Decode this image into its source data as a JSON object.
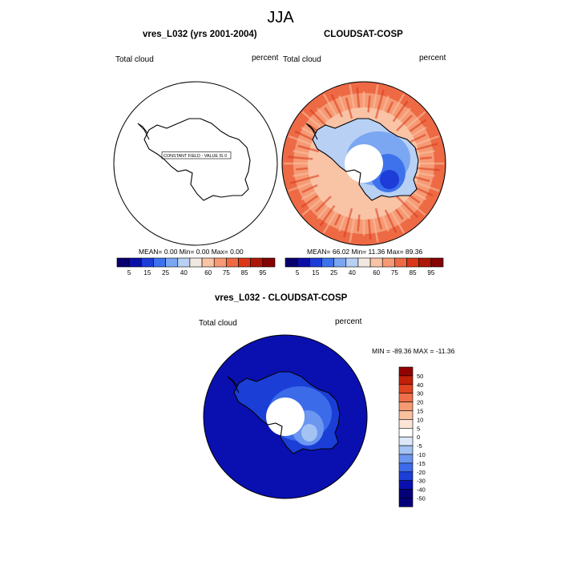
{
  "page": {
    "title": "JJA"
  },
  "colors": {
    "scale11": [
      "#07006e",
      "#0a0fa6",
      "#1d3cd8",
      "#3e72ec",
      "#7ba6f2",
      "#b7d0f4",
      "#f2e8e2",
      "#f9c3a6",
      "#f59a74",
      "#ed6a45",
      "#d93718",
      "#ad1707",
      "#840303"
    ],
    "diff15": [
      "#05007a",
      "#0a10b0",
      "#1a3ed6",
      "#3c6bea",
      "#6c97f0",
      "#a4c2f2",
      "#dce8f7",
      "#ffffff",
      "#fce4d6",
      "#f9c09e",
      "#f49a72",
      "#ee6f48",
      "#e04420",
      "#c21f08",
      "#910303"
    ],
    "model_fill": "#ffffff",
    "outline": "#000000"
  },
  "chart_data": [
    {
      "type": "heatmap",
      "projection": "south-polar-stereographic",
      "title": "vres_L032 (yrs 2001-2004)",
      "field_label": "Total cloud",
      "units_label": "percent",
      "annotation": "CONSTANT FIELD - VALUE IS 0",
      "stats": {
        "mean": "0.00",
        "min": "0.00",
        "max": "0.00"
      },
      "stats_text": "MEAN=   0.00  Min=   0.00  Max=   0.00",
      "levels": [
        5,
        10,
        15,
        20,
        25,
        30,
        40,
        50,
        60,
        70,
        75,
        80,
        85,
        90,
        95
      ],
      "tick_labels": [
        "5",
        "15",
        "25",
        "40",
        "60",
        "75",
        "85",
        "95"
      ],
      "colorbar_orientation": "horizontal",
      "field_description": "constant 0 everywhere"
    },
    {
      "type": "heatmap",
      "projection": "south-polar-stereographic",
      "title": "CLOUDSAT-COSP",
      "field_label": "Total cloud",
      "units_label": "percent",
      "stats": {
        "mean": "66.02",
        "min": "11.36",
        "max": "89.36"
      },
      "stats_text": "MEAN=  66.02  Min=  11.36  Max=  89.36",
      "levels": [
        5,
        10,
        15,
        20,
        25,
        30,
        40,
        50,
        60,
        70,
        75,
        80,
        85,
        90,
        95
      ],
      "tick_labels": [
        "5",
        "15",
        "25",
        "40",
        "60",
        "75",
        "85",
        "95"
      ],
      "colorbar_orientation": "horizontal",
      "field_description": "60-85 over Southern Ocean, 15-40 over East Antarctic interior, no data poleward of ~82S"
    },
    {
      "type": "heatmap",
      "projection": "south-polar-stereographic",
      "title": "vres_L032 - CLOUDSAT-COSP",
      "field_label": "Total cloud",
      "units_label": "percent",
      "stats_text": "MIN = -89.36 MAX = -11.36",
      "stats": {
        "min": "-89.36",
        "max": "-11.36"
      },
      "levels": [
        -50,
        -40,
        -30,
        -20,
        -15,
        -10,
        -5,
        0,
        5,
        10,
        15,
        20,
        30,
        40,
        50
      ],
      "tick_labels": [
        "-50",
        "-40",
        "-30",
        "-20",
        "-15",
        "-10",
        "-5",
        "0",
        "5",
        "10",
        "15",
        "20",
        "30",
        "40",
        "50"
      ],
      "colorbar_orientation": "vertical",
      "field_description": "below -50 over ocean, -40 to -10 over Antarctic interior"
    }
  ]
}
